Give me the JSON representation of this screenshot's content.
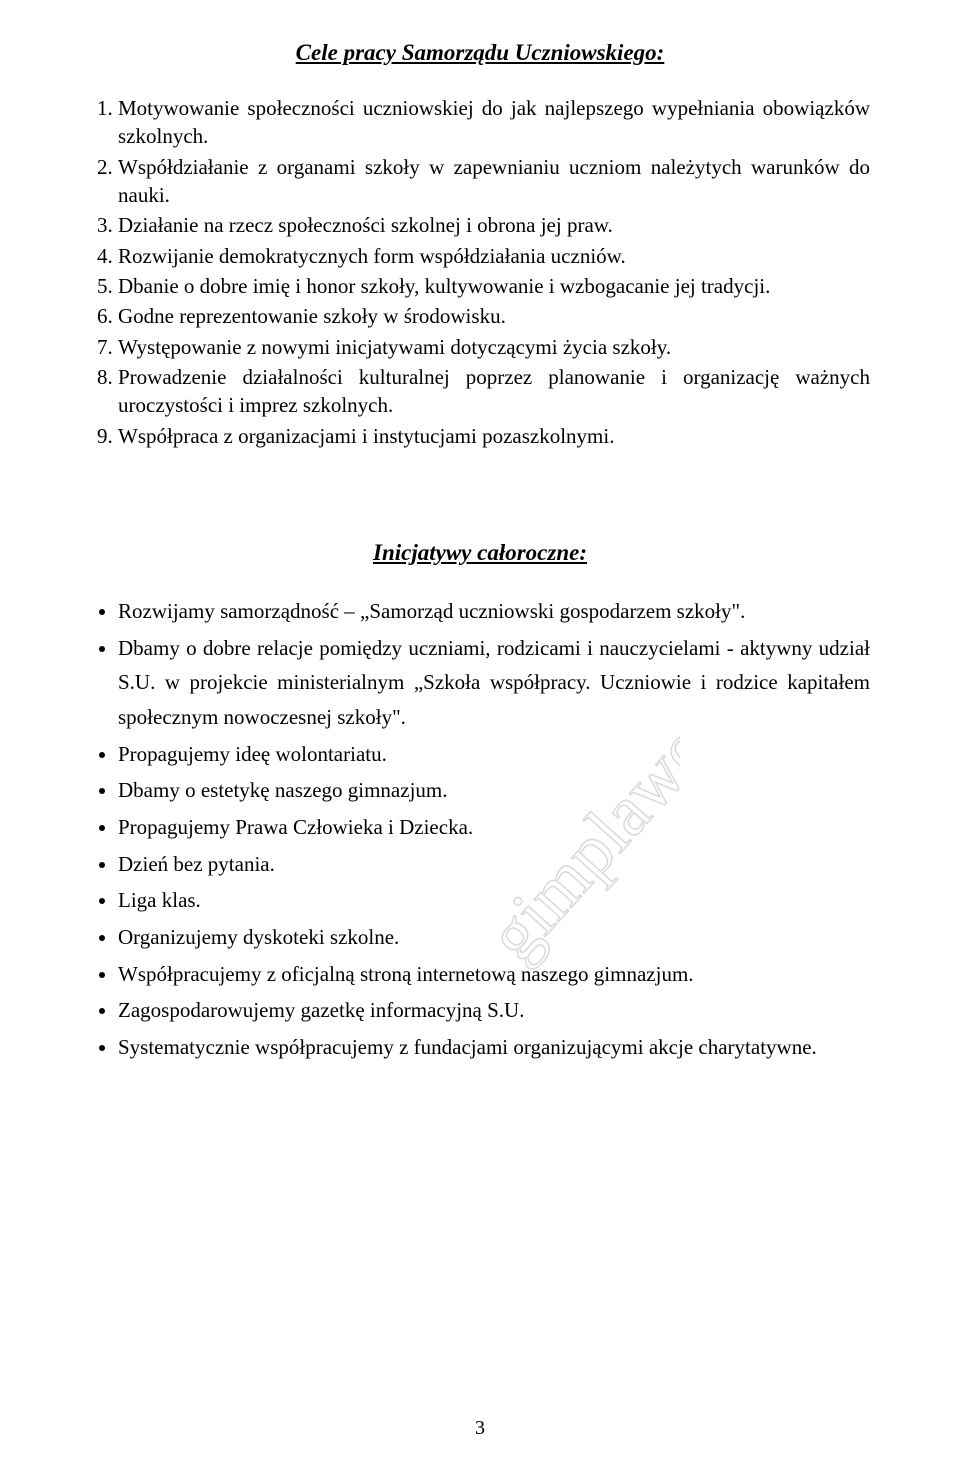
{
  "title1": "Cele pracy  Samorządu Uczniowskiego:",
  "numbered_items": [
    "Motywowanie społeczności uczniowskiej do jak najlepszego wypełniania obowiązków szkolnych.",
    "Współdziałanie z organami szkoły   w zapewnianiu uczniom należytych warunków do nauki.",
    "Działanie na rzecz społeczności szkolnej i obrona jej praw.",
    "Rozwijanie demokratycznych form współdziałania uczniów.",
    "Dbanie o dobre imię i honor szkoły, kultywowanie i wzbogacanie jej tradycji.",
    "Godne reprezentowanie szkoły w środowisku.",
    "Występowanie z nowymi inicjatywami dotyczącymi życia szkoły.",
    "Prowadzenie działalności kulturalnej poprzez planowanie i organizację ważnych uroczystości i imprez szkolnych.",
    "Współpraca z organizacjami i instytucjami pozaszkolnymi."
  ],
  "title2": "Inicjatywy całoroczne:",
  "bullet_items": [
    "Rozwijamy samorządność – „Samorząd uczniowski gospodarzem szkoły\".",
    "Dbamy o  dobre relacje pomiędzy uczniami, rodzicami  i nauczycielami - aktywny udział S.U. w projekcie ministerialnym „Szkoła współpracy. Uczniowie i rodzice kapitałem społecznym nowoczesnej szkoły\".",
    "Propagujemy ideę wolontariatu.",
    "Dbamy o estetykę naszego gimnazjum.",
    "Propagujemy Prawa Człowieka i Dziecka.",
    "Dzień bez pytania.",
    "Liga klas.",
    "Organizujemy dyskoteki szkolne.",
    "Współpracujemy z oficjalną stroną internetową naszego gimnazjum.",
    "Zagospodarowujemy gazetkę informacyjną S.U.",
    "Systematycznie współpracujemy z fundacjami organizującymi akcje charytatywne."
  ],
  "page_number": "3",
  "watermark_text": "gimplawo.pl",
  "colors": {
    "text": "#000000",
    "background": "#ffffff",
    "watermark_stroke": "#d9d9d9"
  }
}
